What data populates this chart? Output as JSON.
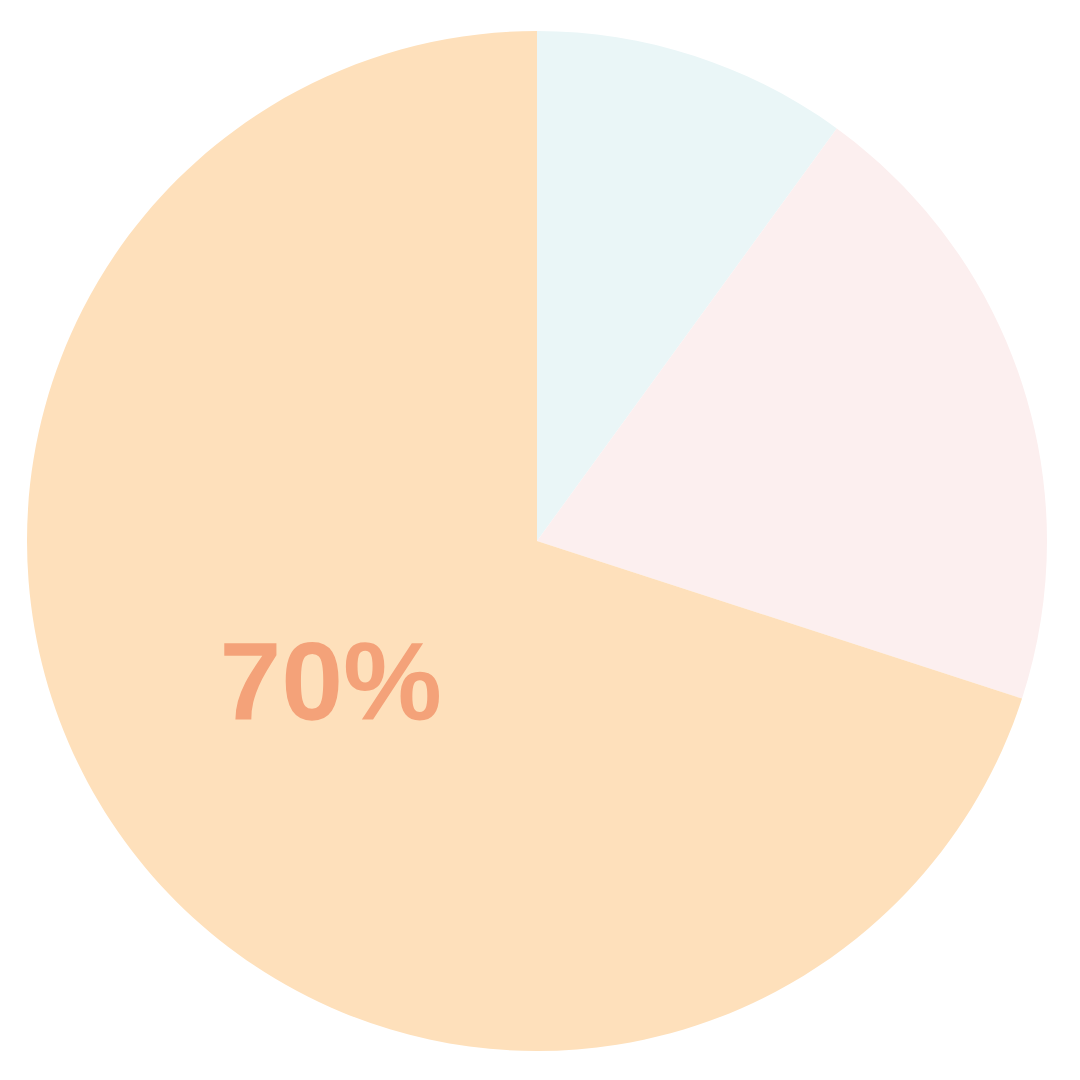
{
  "chart_data": {
    "type": "pie",
    "categories": [
      null,
      null,
      null
    ],
    "values": [
      10,
      20,
      70
    ],
    "colors": [
      "#eaf6f7",
      "#fcefef",
      "#fee0bb"
    ],
    "value_labels": [
      null,
      null,
      "70%"
    ],
    "legend": false
  }
}
